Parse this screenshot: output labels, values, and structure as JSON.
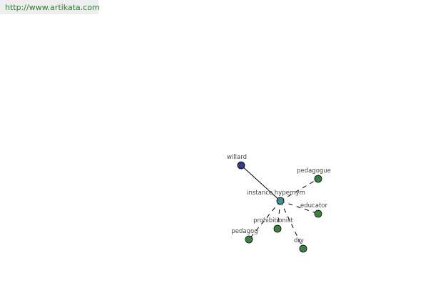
{
  "banner": {
    "url": "http://www.artikata.com"
  },
  "graph": {
    "center": {
      "label": "instance hypernym",
      "color": "#3f8f8f"
    },
    "nodes": [
      {
        "id": "willard",
        "label": "willard",
        "color": "#3a3a8a",
        "edge": "solid"
      },
      {
        "id": "pedagogue",
        "label": "pedagogue",
        "color": "#3f7f3f",
        "edge": "dashed"
      },
      {
        "id": "educator",
        "label": "educator",
        "color": "#3f7f3f",
        "edge": "dashed"
      },
      {
        "id": "prohibitionist",
        "label": "prohibitionist",
        "color": "#3f7f3f",
        "edge": "dashed"
      },
      {
        "id": "pedagog",
        "label": "pedagog",
        "color": "#3f7f3f",
        "edge": "dashed"
      },
      {
        "id": "dry",
        "label": "dry",
        "color": "#3f7f3f",
        "edge": "dashed"
      }
    ]
  }
}
